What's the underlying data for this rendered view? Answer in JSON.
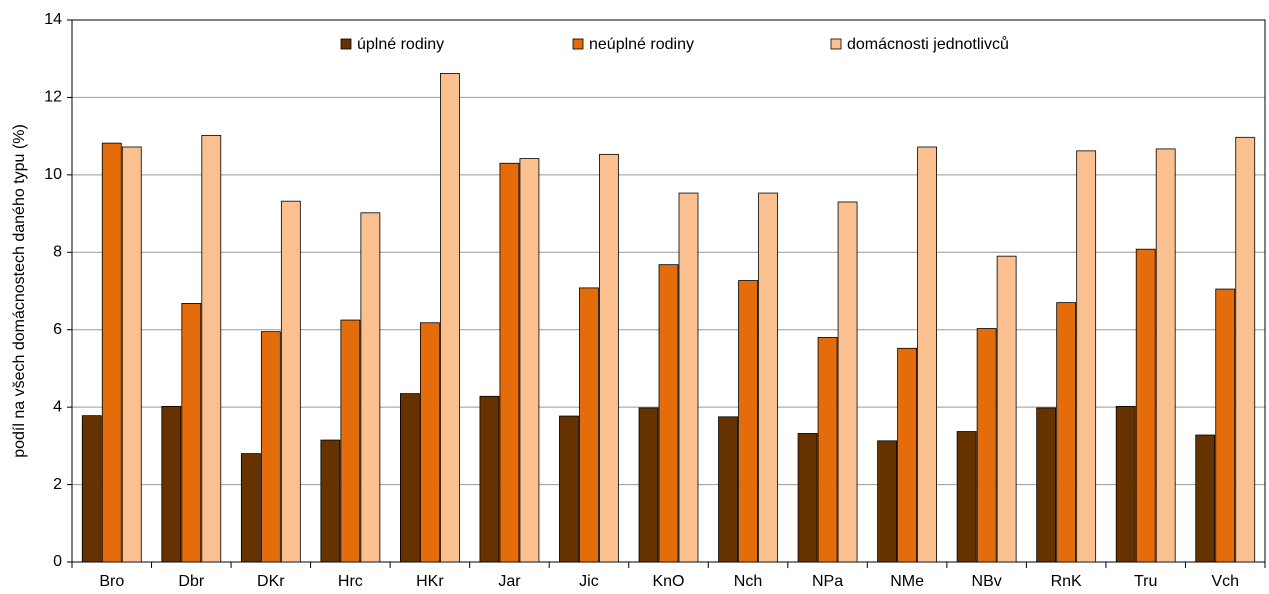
{
  "chart_data": {
    "type": "bar",
    "y_label": "podíl na všech domácnostech daného typu (%)",
    "categories": [
      "Bro",
      "Dbr",
      "DKr",
      "Hrc",
      "HKr",
      "Jar",
      "Jic",
      "KnO",
      "Nch",
      "NPa",
      "NMe",
      "NBv",
      "RnK",
      "Tru",
      "Vch"
    ],
    "series": [
      {
        "name": "úplné rodiny",
        "color": "#663300",
        "values": [
          3.78,
          4.02,
          2.8,
          3.15,
          4.35,
          4.28,
          3.77,
          3.98,
          3.75,
          3.32,
          3.13,
          3.37,
          3.98,
          4.02,
          3.28
        ]
      },
      {
        "name": "neúplné rodiny",
        "color": "#e46c0a",
        "values": [
          10.82,
          6.68,
          5.95,
          6.25,
          6.18,
          10.3,
          7.08,
          7.68,
          7.27,
          5.8,
          5.52,
          6.03,
          6.7,
          8.08,
          7.05
        ]
      },
      {
        "name": "domácnosti jednotlivců",
        "color": "#fac090",
        "values": [
          10.72,
          11.02,
          9.32,
          9.02,
          12.62,
          10.42,
          10.53,
          9.53,
          9.53,
          9.3,
          10.72,
          7.9,
          10.62,
          10.67,
          10.97
        ]
      }
    ],
    "ylim": [
      0,
      14
    ],
    "yticks": [
      0,
      2,
      4,
      6,
      8,
      10,
      12,
      14
    ],
    "grid": true,
    "legend": "top"
  }
}
